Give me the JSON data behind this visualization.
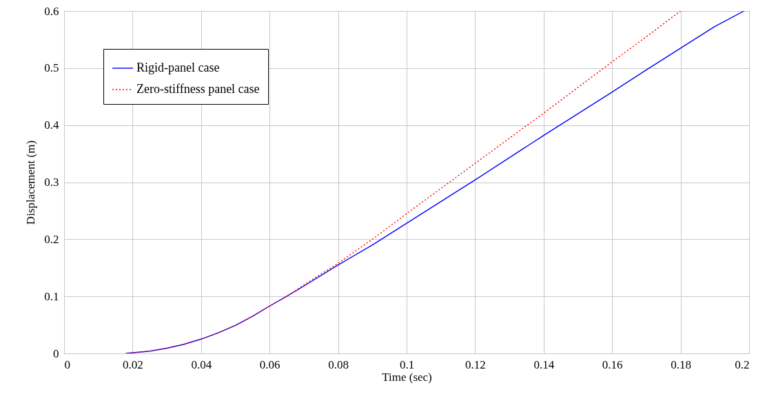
{
  "chart_data": {
    "type": "line",
    "xlabel": "Time (sec)",
    "ylabel": "Displacement (m)",
    "xlim": [
      0,
      0.2
    ],
    "ylim": [
      0,
      0.6
    ],
    "xticks": [
      0,
      0.02,
      0.04,
      0.06,
      0.08,
      0.1,
      0.12,
      0.14,
      0.16,
      0.18,
      0.2
    ],
    "yticks": [
      0,
      0.1,
      0.2,
      0.3,
      0.4,
      0.5,
      0.6
    ],
    "grid": true,
    "legend": "top left",
    "series": [
      {
        "name": "Rigid-panel case",
        "color": "#0000ff",
        "line_style": "solid",
        "x": [
          0.018,
          0.025,
          0.03,
          0.035,
          0.04,
          0.045,
          0.05,
          0.055,
          0.06,
          0.065,
          0.07,
          0.08,
          0.09,
          0.1,
          0.11,
          0.12,
          0.13,
          0.14,
          0.15,
          0.16,
          0.17,
          0.18,
          0.19,
          0.1985
        ],
        "values": [
          0,
          0.004,
          0.009,
          0.016,
          0.025,
          0.036,
          0.049,
          0.065,
          0.083,
          0.1,
          0.118,
          0.155,
          0.19,
          0.228,
          0.266,
          0.304,
          0.343,
          0.382,
          0.42,
          0.458,
          0.497,
          0.535,
          0.573,
          0.6
        ]
      },
      {
        "name": "Zero-stiffness panel case",
        "color": "#ff0000",
        "line_style": "dotted",
        "x": [
          0.018,
          0.025,
          0.03,
          0.035,
          0.04,
          0.045,
          0.05,
          0.055,
          0.06,
          0.065,
          0.07,
          0.08,
          0.09,
          0.1,
          0.11,
          0.12,
          0.13,
          0.14,
          0.15,
          0.16,
          0.17,
          0.18
        ],
        "values": [
          0,
          0.004,
          0.009,
          0.016,
          0.025,
          0.036,
          0.049,
          0.065,
          0.083,
          0.1,
          0.12,
          0.158,
          0.2,
          0.245,
          0.289,
          0.333,
          0.377,
          0.421,
          0.466,
          0.511,
          0.555,
          0.6
        ]
      }
    ]
  }
}
